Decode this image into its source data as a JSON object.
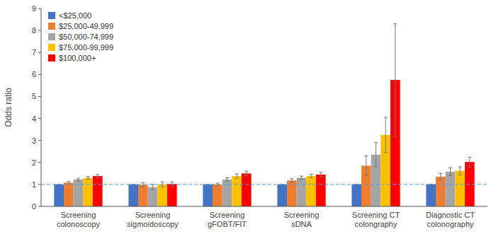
{
  "chart_data": {
    "type": "bar",
    "categories": [
      "Screening\ncolonoscopy",
      "Screening\nsigmoidoscopy",
      "Screening\ngFOBT/FIT",
      "Screening\nsDNA",
      "Screening CT\ncolongraphy",
      "Diagnostic CT\ncolonography"
    ],
    "series": [
      {
        "name": "<$25,000",
        "color": "#4472C4",
        "values": [
          1.0,
          1.0,
          1.0,
          1.0,
          1.0,
          1.0
        ],
        "errors": [
          0.0,
          0.0,
          0.0,
          0.0,
          0.0,
          0.0
        ]
      },
      {
        "name": "$25,000-49,999",
        "color": "#ED7D31",
        "values": [
          1.08,
          0.98,
          1.0,
          1.18,
          1.85,
          1.35
        ],
        "errors": [
          0.06,
          0.1,
          0.06,
          0.08,
          0.45,
          0.15
        ]
      },
      {
        "name": "$50,000-74,999",
        "color": "#A5A5A5",
        "values": [
          1.22,
          0.88,
          1.22,
          1.3,
          2.35,
          1.58
        ],
        "errors": [
          0.06,
          0.12,
          0.08,
          0.08,
          0.55,
          0.18
        ]
      },
      {
        "name": "$75,000-99,999",
        "color": "#FFC000",
        "values": [
          1.3,
          1.0,
          1.38,
          1.38,
          3.25,
          1.62
        ],
        "errors": [
          0.06,
          0.12,
          0.1,
          0.08,
          0.8,
          0.18
        ]
      },
      {
        "name": "$100,000+",
        "color": "#FF0000",
        "values": [
          1.38,
          1.02,
          1.5,
          1.45,
          5.75,
          2.02
        ],
        "errors": [
          0.07,
          0.1,
          0.1,
          0.1,
          2.55,
          0.22
        ]
      }
    ],
    "ylabel": "Odds ratio",
    "ylim": [
      0,
      9
    ],
    "yticks": [
      0,
      1,
      2,
      3,
      4,
      5,
      6,
      7,
      8,
      9
    ],
    "reference_line": 1.0,
    "legend": "upper left",
    "grid": false
  }
}
